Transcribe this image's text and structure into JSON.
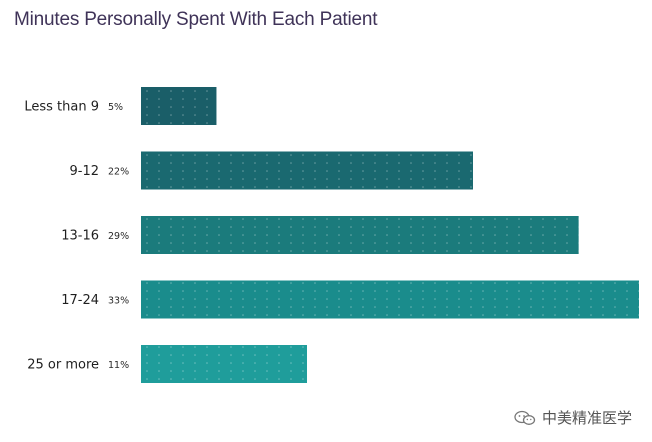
{
  "chart_data": {
    "type": "bar",
    "orientation": "horizontal",
    "title": "Minutes Personally Spent With Each Patient",
    "categories": [
      "Less than 9",
      "9-12",
      "13-16",
      "17-24",
      "25 or more"
    ],
    "values": [
      5,
      22,
      29,
      33,
      11
    ],
    "value_labels": [
      "5%",
      "22%",
      "29%",
      "33%",
      "11%"
    ],
    "unit": "%",
    "xlim": [
      0,
      33
    ],
    "grid": false,
    "legend": "none",
    "bar_colors": [
      "#1a5e68",
      "#1a6970",
      "#1b7b7c",
      "#1a8c8c",
      "#1f9d9b"
    ]
  },
  "watermark": {
    "text": "中美精准医学",
    "icon": "wechat-icon"
  }
}
